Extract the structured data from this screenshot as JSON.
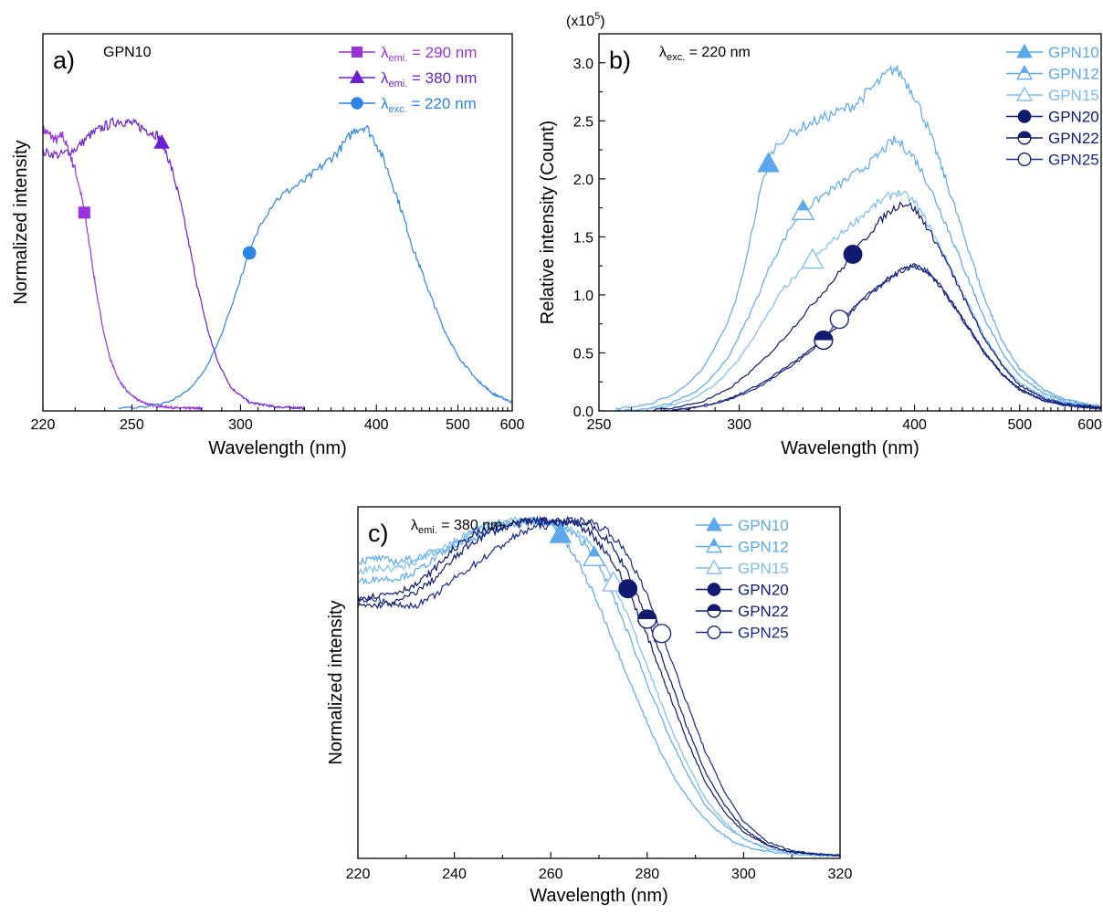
{
  "chart_data": [
    {
      "type": "line",
      "panel": "a)",
      "annotation": "GPN10",
      "xlabel": "Wavelength (nm)",
      "ylabel": "Normalized intensity",
      "xlim": [
        220,
        600
      ],
      "xscale": "reciprocal",
      "xticks": [
        "220",
        "250",
        "300",
        "400",
        "500",
        "600"
      ],
      "legend_position": "top-right",
      "series": [
        {
          "name_main": "λ",
          "name_sub": "emi.",
          "name_rest": " = 290 nm",
          "color": "#9b32e0",
          "marker": "square",
          "marker_x": 233,
          "x": [
            220,
            224,
            226,
            228,
            230,
            232,
            234,
            236,
            238,
            240,
            242,
            245,
            248,
            252,
            256,
            262,
            270,
            280
          ],
          "y": [
            0.97,
            0.93,
            0.95,
            0.89,
            0.83,
            0.74,
            0.62,
            0.48,
            0.35,
            0.25,
            0.17,
            0.1,
            0.06,
            0.03,
            0.015,
            0.005,
            0.0,
            0.0
          ]
        },
        {
          "name_main": "λ",
          "name_sub": "emi.",
          "name_rest": " = 380 nm",
          "color": "#6a1fd6",
          "marker": "triangle",
          "marker_x": 262,
          "x": [
            220,
            225,
            230,
            235,
            240,
            245,
            250,
            255,
            260,
            263,
            266,
            270,
            274,
            278,
            283,
            288,
            295,
            305,
            320,
            340
          ],
          "y": [
            0.89,
            0.88,
            0.9,
            0.95,
            0.98,
            1.0,
            0.99,
            0.97,
            0.95,
            0.91,
            0.84,
            0.72,
            0.57,
            0.42,
            0.27,
            0.16,
            0.07,
            0.02,
            0.005,
            0.0
          ]
        },
        {
          "name_main": "λ",
          "name_sub": "exc.",
          "name_rest": " = 220 nm",
          "color": "#2a83e6",
          "marker": "circle",
          "marker_x": 305,
          "x": [
            245,
            255,
            265,
            275,
            283,
            290,
            300,
            305,
            312,
            320,
            330,
            340,
            350,
            365,
            380,
            390,
            400,
            410,
            425,
            440,
            460,
            480,
            500,
            530,
            560,
            600
          ],
          "y": [
            0.0,
            0.005,
            0.02,
            0.07,
            0.15,
            0.26,
            0.45,
            0.54,
            0.65,
            0.72,
            0.76,
            0.79,
            0.83,
            0.89,
            0.97,
            0.98,
            0.92,
            0.84,
            0.7,
            0.55,
            0.4,
            0.27,
            0.18,
            0.1,
            0.05,
            0.02
          ]
        }
      ]
    },
    {
      "type": "line",
      "panel": "b)",
      "annotation_main": "λ",
      "annotation_sub": "exc.",
      "annotation_rest": " = 220 nm",
      "xlabel": "Wavelength (nm)",
      "ylabel": "Relative intensity (Count)",
      "ymultiplier_base": "(x10",
      "ymultiplier_exp": "5",
      "ymultiplier_close": ")",
      "xlim": [
        250,
        620
      ],
      "xscale": "reciprocal",
      "xticks": [
        "250",
        "300",
        "400",
        "500",
        "600"
      ],
      "ylim": [
        0.0,
        3.25
      ],
      "yticks": [
        "0.0",
        "0.5",
        "1.0",
        "1.5",
        "2.0",
        "2.5",
        "3.0"
      ],
      "legend_position": "top-right",
      "series": [
        {
          "name": "GPN10",
          "color": "#5ca8ee",
          "marker": "triangle-filled",
          "marker_x": 313,
          "x": [
            255,
            265,
            275,
            285,
            295,
            300,
            305,
            310,
            315,
            320,
            330,
            340,
            350,
            360,
            370,
            380,
            385,
            390,
            400,
            410,
            420,
            440,
            460,
            480,
            500,
            530,
            560,
            600,
            620
          ],
          "y": [
            0.02,
            0.05,
            0.15,
            0.35,
            0.75,
            1.05,
            1.5,
            1.95,
            2.25,
            2.35,
            2.45,
            2.52,
            2.58,
            2.65,
            2.78,
            2.9,
            2.95,
            2.9,
            2.72,
            2.45,
            2.15,
            1.55,
            1.0,
            0.6,
            0.36,
            0.18,
            0.1,
            0.05,
            0.04
          ]
        },
        {
          "name": "GPN12",
          "color": "#5ca8ee",
          "marker": "triangle-half",
          "marker_x": 330,
          "x": [
            255,
            265,
            275,
            285,
            295,
            305,
            315,
            325,
            330,
            340,
            350,
            360,
            370,
            380,
            385,
            390,
            400,
            410,
            420,
            440,
            460,
            480,
            500,
            530,
            560,
            600,
            620
          ],
          "y": [
            0.0,
            0.02,
            0.08,
            0.2,
            0.45,
            0.85,
            1.3,
            1.62,
            1.72,
            1.85,
            1.95,
            2.05,
            2.15,
            2.28,
            2.33,
            2.3,
            2.18,
            1.97,
            1.74,
            1.26,
            0.82,
            0.5,
            0.3,
            0.15,
            0.08,
            0.04,
            0.03
          ]
        },
        {
          "name": "GPN15",
          "color": "#7cbcf3",
          "marker": "triangle-open",
          "marker_x": 335,
          "x": [
            260,
            270,
            280,
            290,
            300,
            310,
            320,
            330,
            335,
            345,
            355,
            365,
            375,
            385,
            390,
            400,
            410,
            420,
            440,
            460,
            480,
            500,
            530,
            560,
            600,
            620
          ],
          "y": [
            0.0,
            0.03,
            0.09,
            0.22,
            0.45,
            0.75,
            1.05,
            1.22,
            1.3,
            1.45,
            1.58,
            1.7,
            1.8,
            1.88,
            1.88,
            1.8,
            1.62,
            1.42,
            1.02,
            0.66,
            0.4,
            0.24,
            0.12,
            0.07,
            0.04,
            0.03
          ]
        },
        {
          "name": "GPN20",
          "color": "#101a6e",
          "marker": "circle-filled",
          "marker_x": 358,
          "x": [
            265,
            275,
            285,
            295,
            305,
            315,
            325,
            335,
            345,
            358,
            370,
            380,
            390,
            395,
            400,
            410,
            420,
            440,
            460,
            480,
            500,
            530,
            560,
            600,
            620
          ],
          "y": [
            0.0,
            0.03,
            0.08,
            0.18,
            0.34,
            0.52,
            0.72,
            0.92,
            1.1,
            1.35,
            1.56,
            1.7,
            1.79,
            1.78,
            1.74,
            1.58,
            1.4,
            1.0,
            0.64,
            0.39,
            0.22,
            0.11,
            0.06,
            0.04,
            0.03
          ]
        },
        {
          "name": "GPN22",
          "color": "#101a6e",
          "marker": "circle-half",
          "marker_x": 341,
          "x": [
            270,
            280,
            290,
            300,
            310,
            320,
            330,
            341,
            350,
            360,
            370,
            380,
            390,
            400,
            410,
            420,
            440,
            460,
            480,
            500,
            530,
            560,
            600,
            620
          ],
          "y": [
            0.0,
            0.02,
            0.07,
            0.14,
            0.24,
            0.36,
            0.48,
            0.61,
            0.75,
            0.9,
            1.03,
            1.13,
            1.21,
            1.25,
            1.19,
            1.08,
            0.8,
            0.52,
            0.32,
            0.19,
            0.09,
            0.05,
            0.03,
            0.03
          ]
        },
        {
          "name": "GPN25",
          "color": "#1a2a8a",
          "marker": "circle-open",
          "marker_x": 350,
          "x": [
            270,
            280,
            290,
            300,
            310,
            320,
            330,
            340,
            350,
            360,
            370,
            380,
            390,
            400,
            410,
            420,
            440,
            460,
            480,
            500,
            530,
            560,
            600,
            620
          ],
          "y": [
            0.0,
            0.02,
            0.06,
            0.13,
            0.22,
            0.34,
            0.46,
            0.6,
            0.79,
            0.9,
            1.02,
            1.12,
            1.21,
            1.26,
            1.2,
            1.08,
            0.79,
            0.51,
            0.31,
            0.18,
            0.09,
            0.05,
            0.03,
            0.02
          ]
        }
      ]
    },
    {
      "type": "line",
      "panel": "c)",
      "annotation_main": "λ",
      "annotation_sub": "emi.",
      "annotation_rest": " = 380 nm",
      "xlabel": "Wavelength (nm)",
      "ylabel": "Normalized intensity",
      "xlim": [
        220,
        320
      ],
      "xticks": [
        "220",
        "240",
        "260",
        "280",
        "300",
        "320"
      ],
      "xtick_values": [
        220,
        240,
        260,
        280,
        300,
        320
      ],
      "ylim": [
        0,
        1.0
      ],
      "legend_position": "top-right",
      "series": [
        {
          "name": "GPN10",
          "color": "#5ca8ee",
          "marker": "triangle-filled",
          "marker_x": 262,
          "x": [
            220,
            224,
            228,
            232,
            236,
            240,
            244,
            248,
            252,
            256,
            258,
            260,
            262,
            266,
            270,
            274,
            278,
            282,
            286,
            290,
            294,
            298,
            302,
            306,
            310,
            315,
            320
          ],
          "y": [
            0.87,
            0.88,
            0.87,
            0.88,
            0.9,
            0.92,
            0.94,
            0.96,
            0.98,
            0.99,
            0.99,
            0.98,
            0.95,
            0.86,
            0.74,
            0.6,
            0.46,
            0.33,
            0.22,
            0.14,
            0.08,
            0.04,
            0.02,
            0.01,
            0.005,
            0.0,
            0.0
          ]
        },
        {
          "name": "GPN12",
          "color": "#5ca8ee",
          "marker": "triangle-half",
          "marker_x": 269,
          "x": [
            220,
            224,
            228,
            232,
            236,
            240,
            244,
            248,
            252,
            256,
            260,
            264,
            268,
            272,
            276,
            280,
            284,
            288,
            292,
            296,
            300,
            305,
            310,
            315,
            320
          ],
          "y": [
            0.81,
            0.82,
            0.82,
            0.84,
            0.88,
            0.92,
            0.96,
            0.98,
            0.99,
            0.99,
            0.98,
            0.96,
            0.91,
            0.8,
            0.66,
            0.51,
            0.37,
            0.25,
            0.15,
            0.09,
            0.05,
            0.02,
            0.01,
            0.005,
            0.0
          ]
        },
        {
          "name": "GPN15",
          "color": "#7cbcf3",
          "marker": "triangle-open",
          "marker_x": 273,
          "x": [
            220,
            224,
            228,
            232,
            236,
            240,
            244,
            248,
            252,
            256,
            260,
            264,
            268,
            272,
            276,
            280,
            284,
            288,
            292,
            296,
            300,
            305,
            310,
            315,
            320
          ],
          "y": [
            0.84,
            0.85,
            0.85,
            0.87,
            0.9,
            0.93,
            0.96,
            0.98,
            0.99,
            0.99,
            0.99,
            0.97,
            0.93,
            0.84,
            0.71,
            0.56,
            0.41,
            0.28,
            0.17,
            0.1,
            0.05,
            0.02,
            0.01,
            0.005,
            0.0
          ]
        },
        {
          "name": "GPN20",
          "color": "#101a6e",
          "marker": "circle-filled",
          "marker_x": 276,
          "x": [
            220,
            224,
            228,
            232,
            236,
            240,
            244,
            248,
            252,
            256,
            260,
            264,
            268,
            272,
            276,
            280,
            284,
            288,
            292,
            296,
            300,
            305,
            310,
            315,
            320
          ],
          "y": [
            0.76,
            0.77,
            0.78,
            0.8,
            0.85,
            0.91,
            0.95,
            0.97,
            0.98,
            0.99,
            0.99,
            0.99,
            0.96,
            0.89,
            0.79,
            0.65,
            0.5,
            0.35,
            0.22,
            0.13,
            0.07,
            0.03,
            0.01,
            0.005,
            0.0
          ]
        },
        {
          "name": "GPN22",
          "color": "#101a6e",
          "marker": "circle-half",
          "marker_x": 280,
          "x": [
            220,
            224,
            228,
            232,
            236,
            240,
            244,
            248,
            252,
            256,
            260,
            264,
            268,
            272,
            276,
            280,
            284,
            288,
            292,
            296,
            300,
            305,
            310,
            315,
            320
          ],
          "y": [
            0.74,
            0.74,
            0.75,
            0.78,
            0.82,
            0.88,
            0.93,
            0.96,
            0.98,
            0.99,
            0.99,
            0.99,
            0.98,
            0.93,
            0.84,
            0.7,
            0.55,
            0.39,
            0.25,
            0.15,
            0.08,
            0.03,
            0.01,
            0.005,
            0.0
          ]
        },
        {
          "name": "GPN25",
          "color": "#1a2a8a",
          "marker": "circle-open",
          "marker_x": 283,
          "x": [
            220,
            224,
            228,
            232,
            236,
            240,
            244,
            248,
            252,
            256,
            260,
            264,
            268,
            272,
            276,
            280,
            284,
            288,
            292,
            296,
            300,
            305,
            310,
            315,
            320
          ],
          "y": [
            0.76,
            0.76,
            0.74,
            0.74,
            0.77,
            0.82,
            0.86,
            0.9,
            0.94,
            0.97,
            0.98,
            0.99,
            0.99,
            0.96,
            0.89,
            0.77,
            0.62,
            0.46,
            0.31,
            0.19,
            0.1,
            0.04,
            0.015,
            0.005,
            0.0
          ]
        }
      ]
    }
  ]
}
